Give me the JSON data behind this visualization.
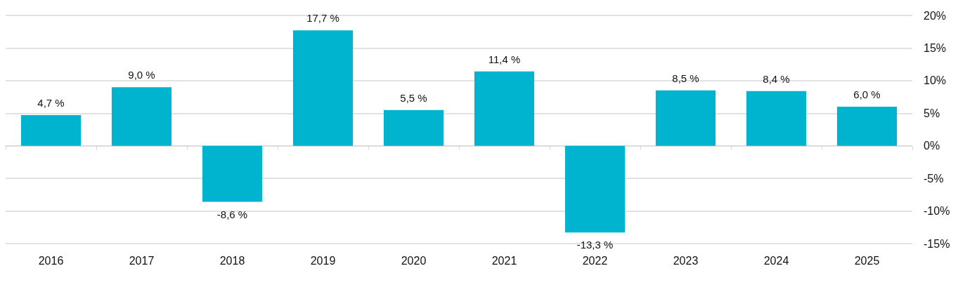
{
  "chart_data": {
    "type": "bar",
    "categories": [
      "2016",
      "2017",
      "2018",
      "2019",
      "2020",
      "2021",
      "2022",
      "2023",
      "2024",
      "2025"
    ],
    "values": [
      4.7,
      9.0,
      -8.6,
      17.7,
      5.5,
      11.4,
      -13.3,
      8.5,
      8.4,
      6.0
    ],
    "value_labels": [
      "4,7 %",
      "9,0 %",
      "-8,6 %",
      "17,7 %",
      "5,5 %",
      "11,4 %",
      "-13,3 %",
      "8,5 %",
      "8,4 %",
      "6,0 %"
    ],
    "color": "#00b4d0",
    "ylim": [
      -15,
      20
    ],
    "yticks": [
      {
        "value": -15,
        "label": "-15%"
      },
      {
        "value": -10,
        "label": "-10%"
      },
      {
        "value": -5,
        "label": "-5%"
      },
      {
        "value": 0,
        "label": "0%"
      },
      {
        "value": 5,
        "label": "5%"
      },
      {
        "value": 10,
        "label": "10%"
      },
      {
        "value": 15,
        "label": "15%"
      },
      {
        "value": 20,
        "label": "20%"
      }
    ],
    "grid": "y"
  }
}
